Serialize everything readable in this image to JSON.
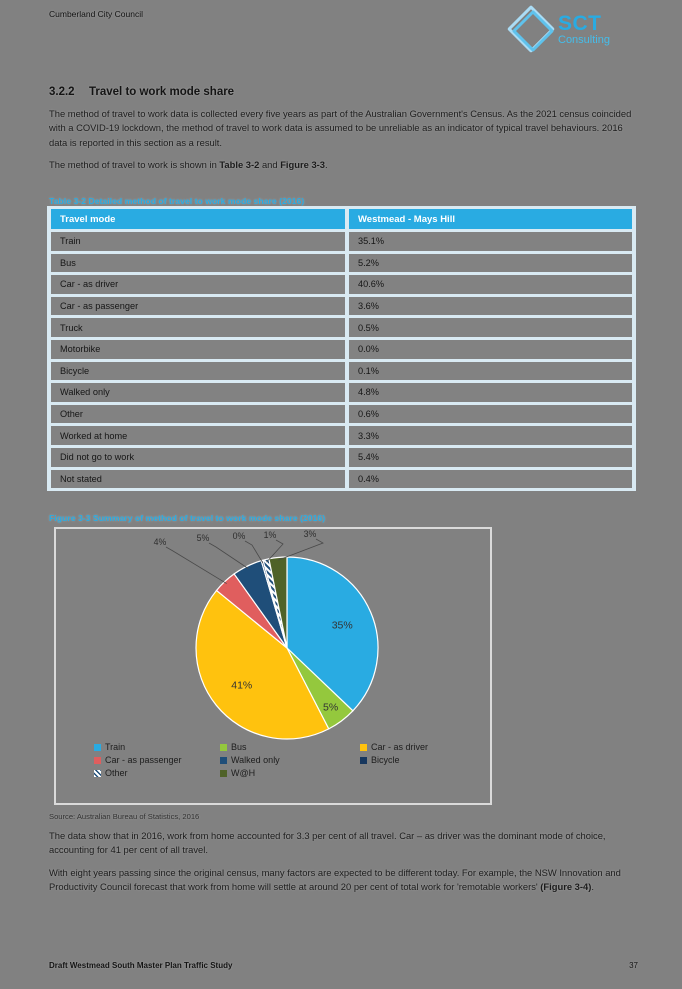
{
  "page": {
    "header_left": "Cumberland City Council",
    "footer_left": "Draft Westmead South Master Plan Traffic Study",
    "footer_page": "37"
  },
  "logo": {
    "title": "SCT",
    "subtitle": "Consulting"
  },
  "section": {
    "number": "3.2.2",
    "title": "Travel to work mode share",
    "para1": "The method of travel to work data is collected every five years as part of the Australian Government's Census. As the 2021 census coincided with a COVID-19 lockdown, the method of travel to work data is assumed to be unreliable as an indicator of typical travel behaviours. 2016 data is reported in this section as a result.",
    "para2_prefix": "The method of travel to work is shown in ",
    "para2_ref1": "Table 3-2",
    "para2_mid": " and ",
    "para2_ref2": "Figure 3-3",
    "para2_suffix": ".",
    "para3": "The data show that in 2016, work from home accounted for 3.3 per cent of all travel. Car – as driver was the dominant mode of choice, accounting for 41 per cent of all travel.",
    "para4_prefix": "With eight years passing since the original census, many factors are expected to be different today. For example, the NSW Innovation and Productivity Council forecast that work from home will settle at around 20 per cent of total work for 'remotable workers' ",
    "para4_ref": "(Figure 3-4)",
    "para4_suffix": "."
  },
  "table": {
    "caption": "Table 3-2 Detailed method of travel to work mode share (2016)",
    "columns": [
      "Travel mode",
      "Westmead - Mays Hill"
    ],
    "rows": [
      [
        "Train",
        "35.1%"
      ],
      [
        "Bus",
        "5.2%"
      ],
      [
        "Car - as driver",
        "40.6%"
      ],
      [
        "Car - as passenger",
        "3.6%"
      ],
      [
        "Truck",
        "0.5%"
      ],
      [
        "Motorbike",
        "0.0%"
      ],
      [
        "Bicycle",
        "0.1%"
      ],
      [
        "Walked only",
        "4.8%"
      ],
      [
        "Other",
        "0.6%"
      ],
      [
        "Worked at home",
        "3.3%"
      ],
      [
        "Did not go to work",
        "5.4%"
      ],
      [
        "Not stated",
        "0.4%"
      ]
    ]
  },
  "figure": {
    "caption": "Figure 3-3 Summary of method of travel to work mode share (2016)",
    "source": "Source: Australian Bureau of Statistics, 2016"
  },
  "chart_data": {
    "type": "pie",
    "title": "Summary of method of travel to work mode share (2016)",
    "legend_position": "bottom",
    "series": [
      {
        "name": "Train",
        "value": 35,
        "label": "35%",
        "color": "#29ABE2",
        "label_pos": "inside",
        "label_r": 0.66
      },
      {
        "name": "Bus",
        "value": 5,
        "label": "5%",
        "color": "#94C83D",
        "label_pos": "inside",
        "label_r": 0.8
      },
      {
        "name": "Car - as driver",
        "value": 41,
        "label": "41%",
        "color": "#FFC20E",
        "label_pos": "inside",
        "label_r": 0.64
      },
      {
        "name": "Car - as passenger",
        "value": 4,
        "label": "4%",
        "color": "#E05E5E",
        "label_pos": "outside"
      },
      {
        "name": "Walked only",
        "value": 5,
        "label": "5%",
        "color": "#1F4E79",
        "label_pos": "outside"
      },
      {
        "name": "Bicycle",
        "value": 0.3,
        "label": "0%",
        "color": "#17375E",
        "label_pos": "outside"
      },
      {
        "name": "Other",
        "value": 1,
        "label": "1%",
        "color": "pattern",
        "label_pos": "outside"
      },
      {
        "name": "W@H",
        "value": 3,
        "label": "3%",
        "color": "#4F6228",
        "label_pos": "outside"
      }
    ]
  }
}
